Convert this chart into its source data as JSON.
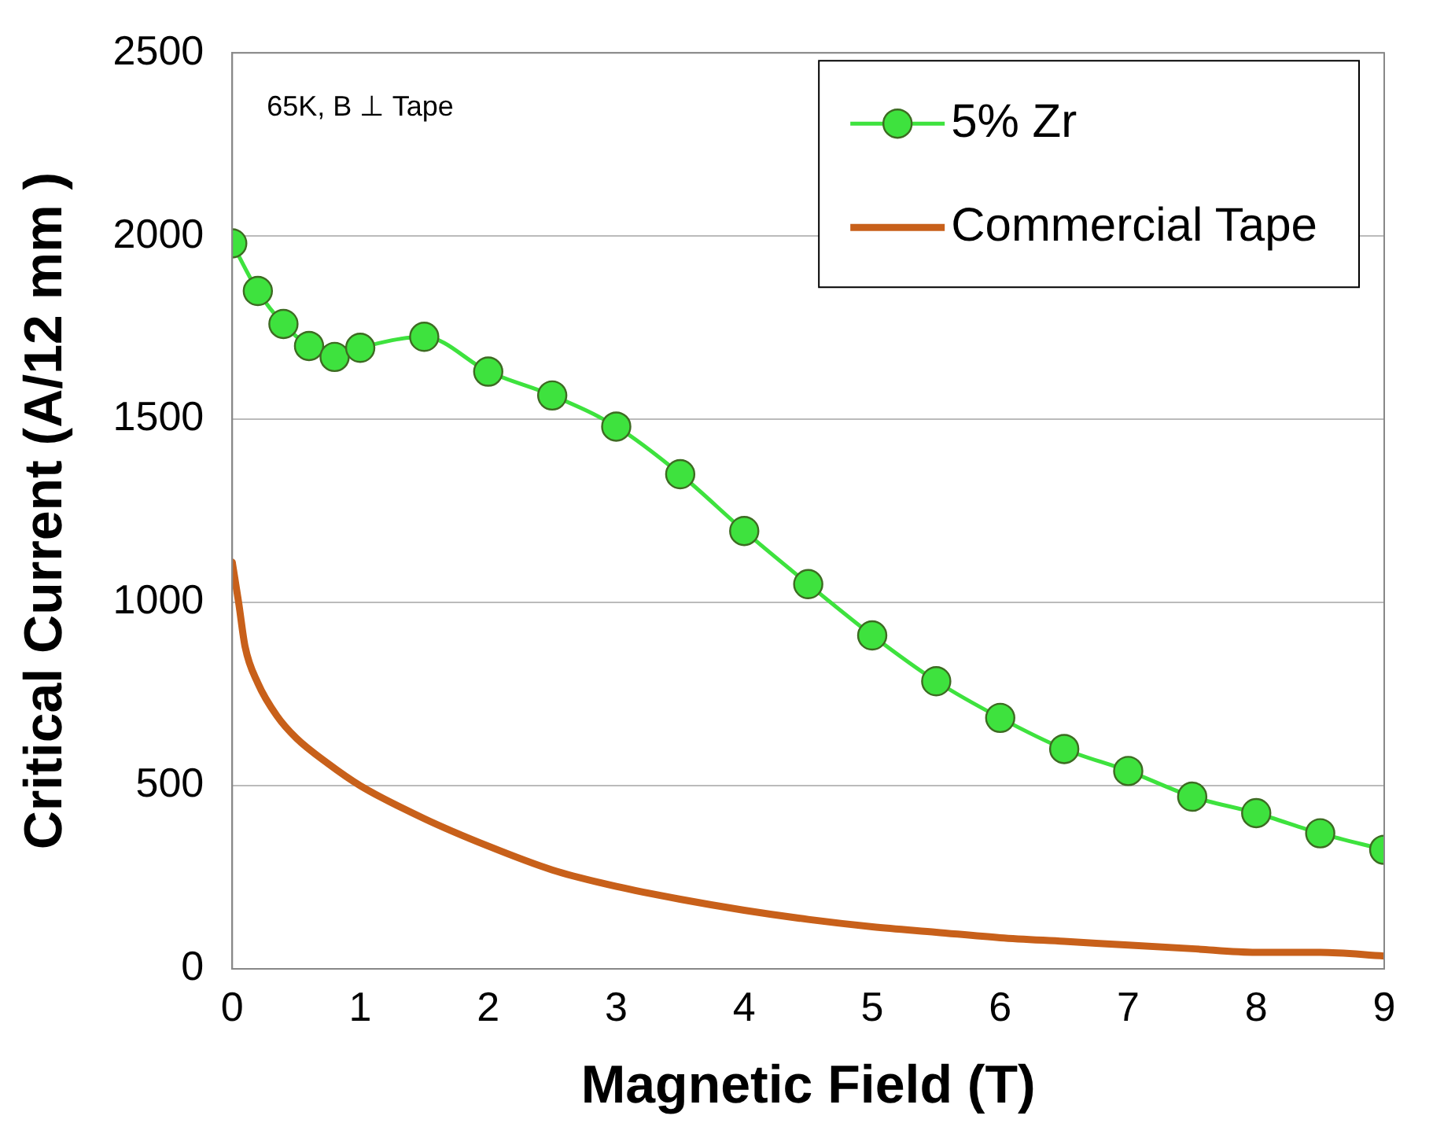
{
  "chart_data": {
    "type": "line",
    "xlabel": "Magnetic Field (T)",
    "ylabel": "Critical Current (A/12 mm )",
    "xlim": [
      0,
      9
    ],
    "xticks": [
      0,
      1,
      2,
      3,
      4,
      5,
      6,
      7,
      8,
      9
    ],
    "ylim": [
      0,
      2500
    ],
    "yticks": [
      0,
      500,
      1000,
      1500,
      2000,
      2500
    ],
    "grid": "y",
    "legend": "top right",
    "annotations": [
      "65K, B ⊥ Tape"
    ],
    "series": [
      {
        "name": "5% Zr",
        "color": "#3ee23e",
        "marker": "circle",
        "x": [
          0,
          0.2,
          0.4,
          0.6,
          0.8,
          1,
          1.5,
          2,
          2.5,
          3,
          3.5,
          4,
          4.5,
          5,
          5.5,
          6,
          6.5,
          7,
          7.5,
          8,
          8.5,
          9
        ],
        "values": [
          1980,
          1850,
          1760,
          1700,
          1670,
          1695,
          1725,
          1630,
          1565,
          1480,
          1350,
          1195,
          1050,
          910,
          785,
          685,
          600,
          540,
          470,
          425,
          370,
          325
        ]
      },
      {
        "name": "Commercial Tape",
        "color": "#c8601a",
        "marker": "none",
        "x": [
          0,
          0.05,
          0.1,
          0.2,
          0.35,
          0.5,
          0.75,
          1,
          1.5,
          2,
          2.5,
          3,
          3.5,
          4,
          4.5,
          5,
          5.5,
          6,
          6.5,
          7,
          7.5,
          8,
          8.5,
          9
        ],
        "values": [
          1110,
          1000,
          880,
          780,
          690,
          630,
          560,
          500,
          410,
          335,
          270,
          225,
          190,
          160,
          135,
          115,
          100,
          85,
          75,
          65,
          55,
          45,
          45,
          35
        ]
      }
    ]
  }
}
